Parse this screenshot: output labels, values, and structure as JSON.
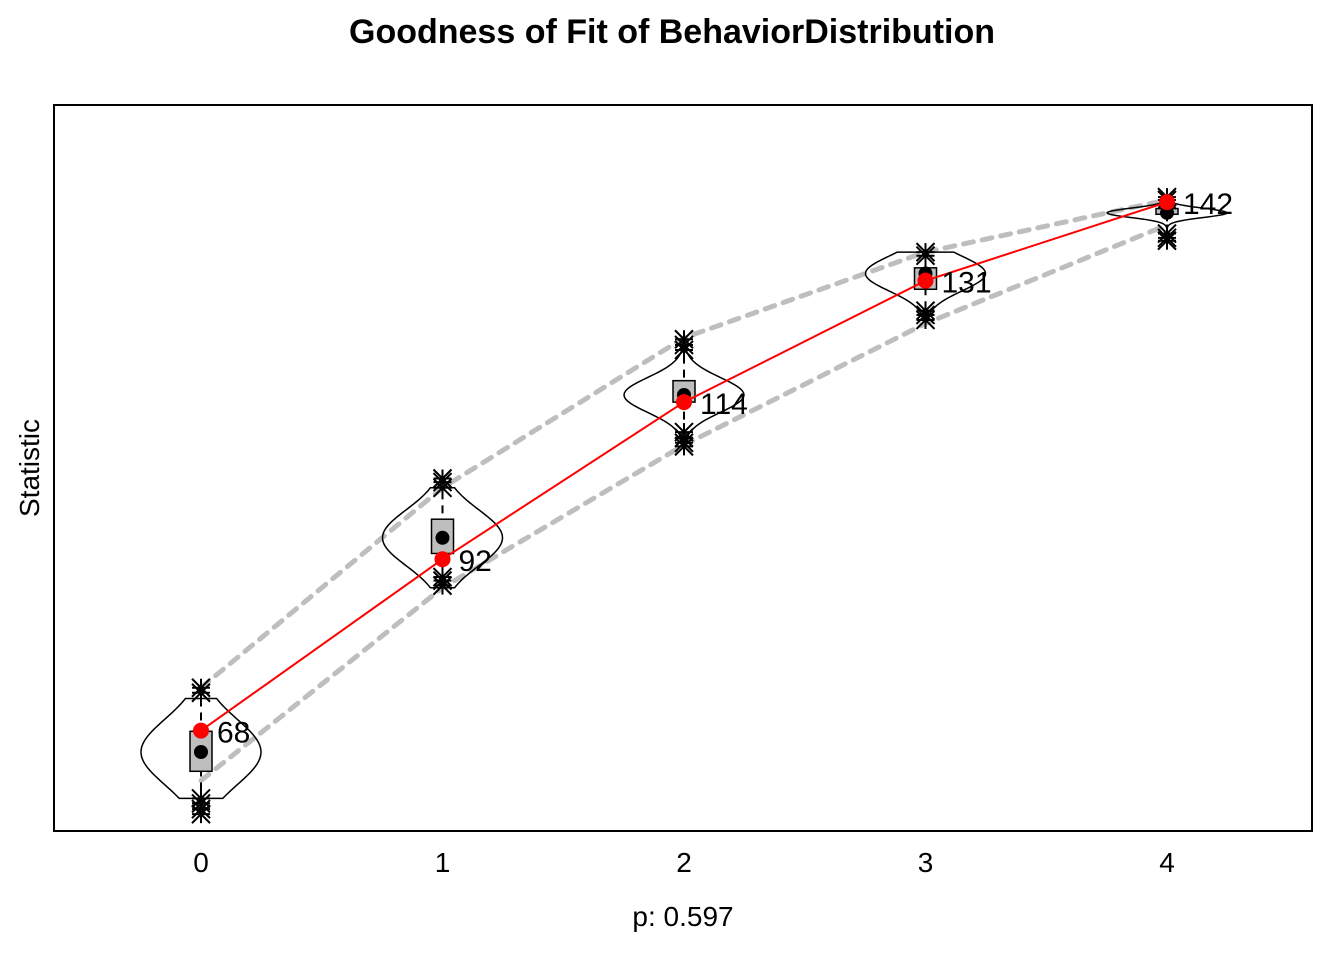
{
  "chart_data": {
    "type": "violin",
    "title": "Goodness of Fit of BehaviorDistribution",
    "xlabel": "p: 0.597",
    "ylabel": "Statistic",
    "x_ticks": [
      "0",
      "1",
      "2",
      "3",
      "4"
    ],
    "ylim": [
      58,
      150
    ],
    "observed": {
      "x": [
        0,
        1,
        2,
        3,
        4
      ],
      "values": [
        68,
        92,
        114,
        131,
        142
      ],
      "labels": [
        "68",
        "92",
        "114",
        "131",
        "142"
      ],
      "color": "#ff0000"
    },
    "simulated": [
      {
        "x": 0,
        "median": 65,
        "q1": 62.3,
        "q3": 67.9,
        "whisker_low": 58.5,
        "whisker_high": 72.5,
        "violin_max": 72.5,
        "violin_min": 58.5,
        "outliers_low": [
          58.5,
          57.8,
          57.0,
          56.3
        ],
        "outliers_high": [
          73.3,
          74.0
        ]
      },
      {
        "x": 1,
        "median": 95,
        "q1": 92.8,
        "q3": 97.6,
        "whisker_low": 89.5,
        "whisker_high": 101.5,
        "violin_max": 102,
        "violin_min": 88,
        "outliers_low": [
          89.5,
          89.0,
          88.3
        ],
        "outliers_high": [
          102.0,
          102.8,
          103.3
        ]
      },
      {
        "x": 2,
        "median": 115,
        "q1": 114,
        "q3": 117,
        "whisker_low": 110,
        "whisker_high": 120.5,
        "violin_max": 122,
        "violin_min": 108,
        "outliers_low": [
          109.8,
          109.0,
          108.3,
          107.8
        ],
        "outliers_high": [
          121.3,
          122.0,
          122.8
        ]
      },
      {
        "x": 3,
        "median": 132,
        "q1": 129.8,
        "q3": 132.8,
        "whisker_low": 127.7,
        "whisker_high": 134.0,
        "violin_max": 135,
        "violin_min": 126,
        "outliers_low": [
          126.8,
          126.2,
          125.5
        ],
        "outliers_high": [
          134.5,
          135.0
        ]
      },
      {
        "x": 4,
        "median": 140.5,
        "q1": 140.3,
        "q3": 141.1,
        "whisker_low": 139.3,
        "whisker_high": 141.8,
        "violin_max": 142.7,
        "violin_min": 136.6,
        "outliers_low": [
          137.6,
          137.0,
          136.6
        ],
        "outliers_high": [
          142.3,
          142.7
        ]
      }
    ],
    "bands": {
      "upper": [
        74,
        102,
        123,
        135,
        142.3
      ],
      "lower": [
        61,
        88,
        108,
        125,
        138.8
      ],
      "style": "dashed",
      "color": "#bebebe"
    },
    "colors": {
      "box_fill": "#bebebe",
      "observed": "#ff0000",
      "median_point": "#000000",
      "band": "#bebebe"
    },
    "grid": false,
    "legend": "none"
  }
}
